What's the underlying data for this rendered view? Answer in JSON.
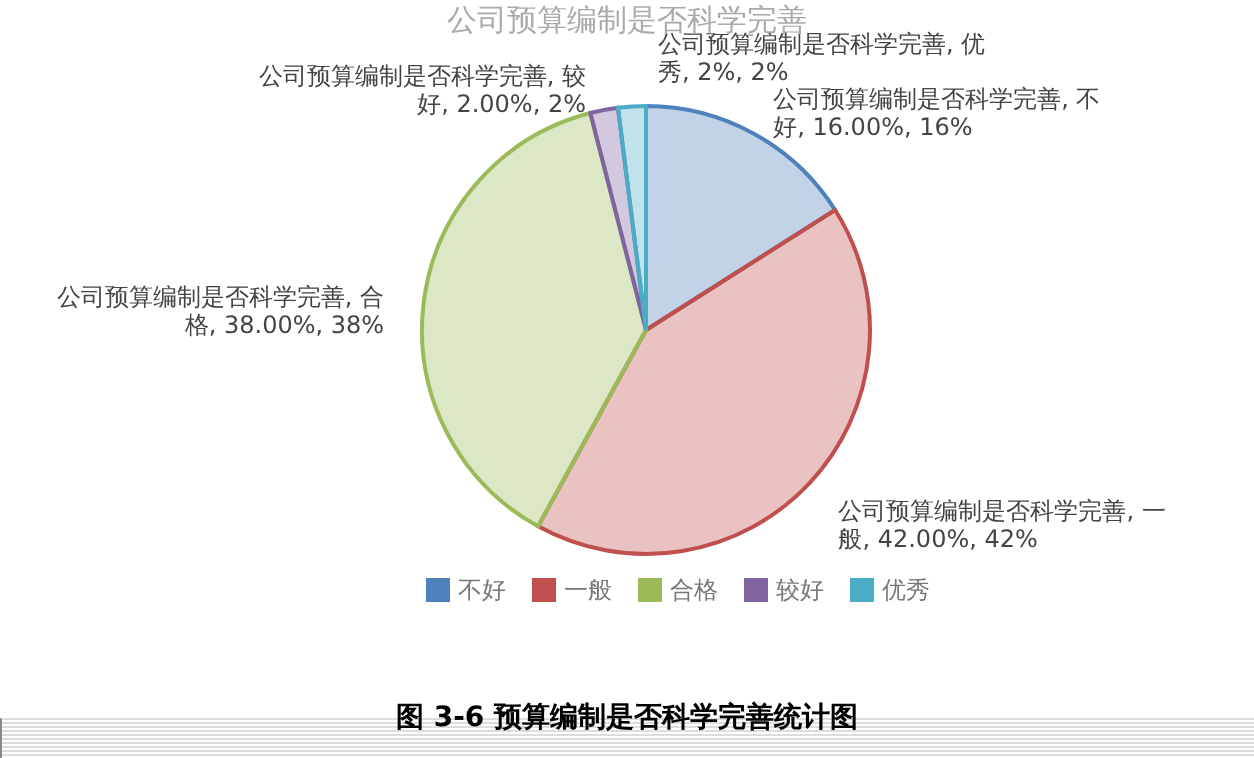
{
  "chart_data": {
    "type": "pie",
    "title": "公司预算编制是否科学完善",
    "categories": [
      "不好",
      "一般",
      "合格",
      "较好",
      "优秀"
    ],
    "values": [
      16,
      42,
      38,
      2,
      2
    ],
    "colors": [
      "#4f81bd",
      "#c0504d",
      "#9bbb59",
      "#8064a2",
      "#4bacc6"
    ],
    "value_labels": [
      "公司预算编制是否科学完善, 不好, 16.00%, 16%",
      "公司预算编制是否科学完善, 一般, 42.00%, 42%",
      "公司预算编制是否科学完善, 合格, 38.00%, 38%",
      "公司预算编制是否科学完善, 较好, 2.00%, 2%",
      "公司预算编制是否科学完善, 优秀, 2%, 2%"
    ],
    "legend": "bottom",
    "annotations": [
      "图 3-6 预算编制是否科学完善统计图"
    ]
  }
}
